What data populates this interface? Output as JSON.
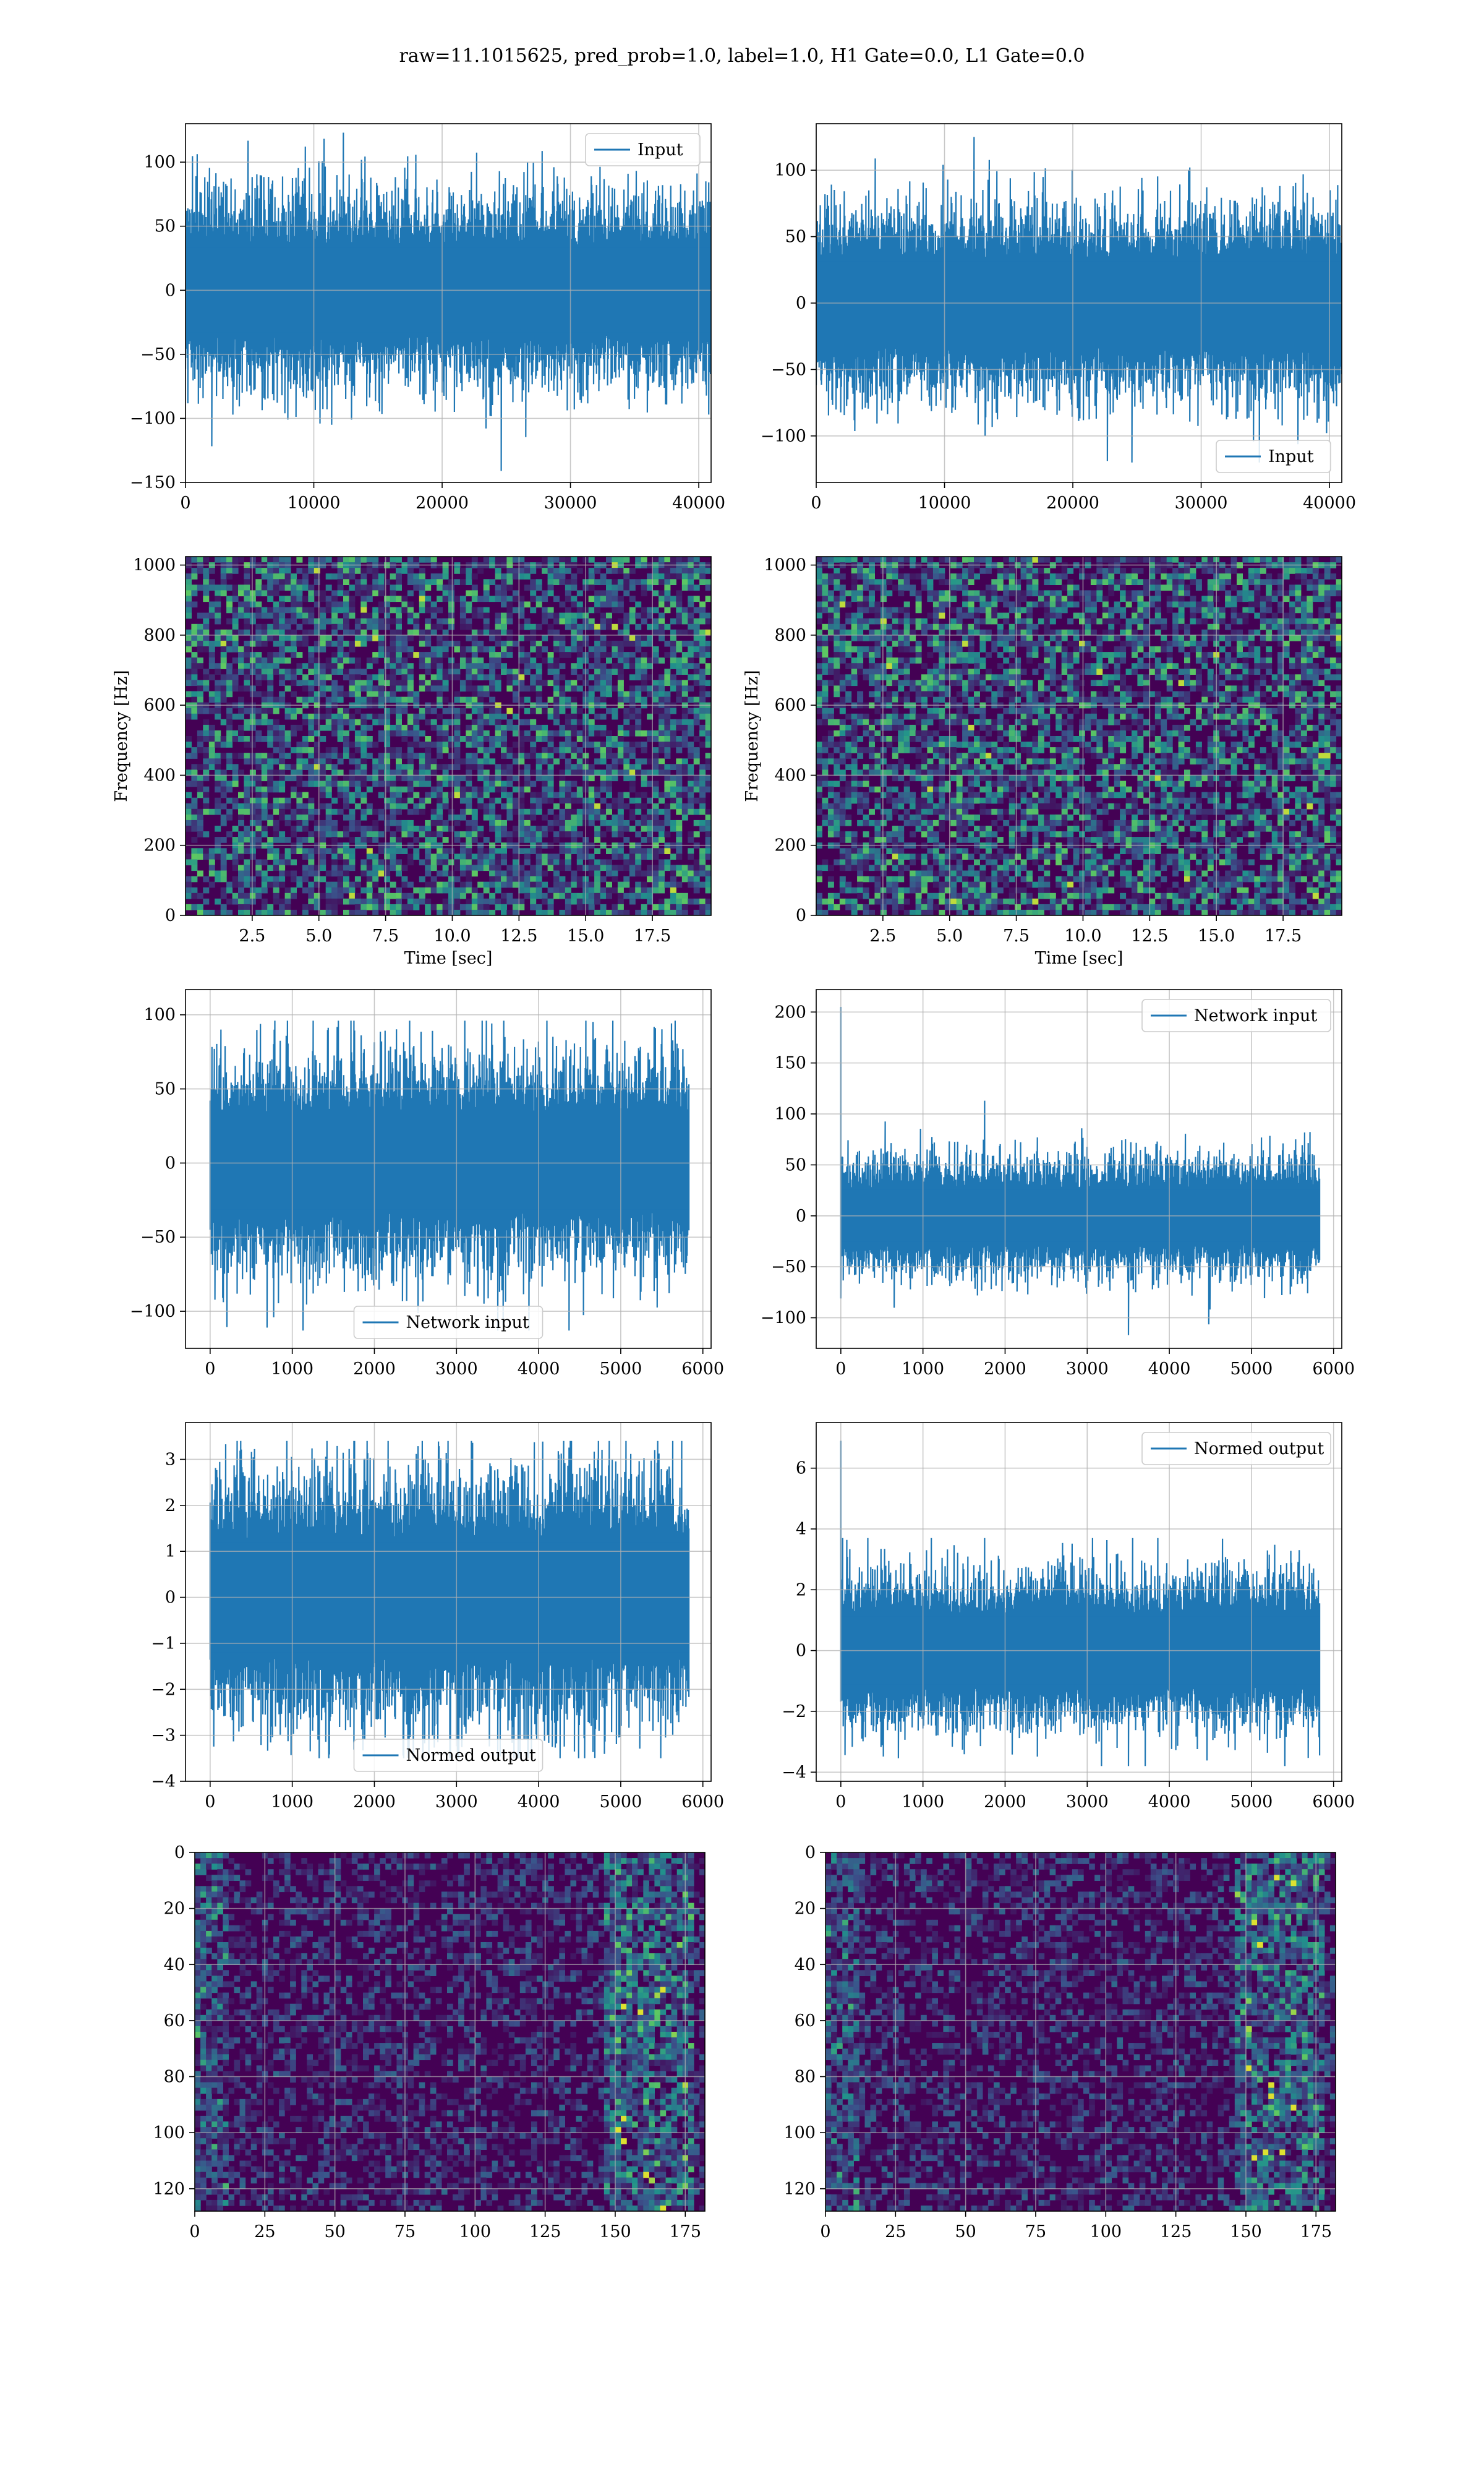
{
  "figure": {
    "suptitle": "raw=11.1015625, pred_prob=1.0, label=1.0, H1 Gate=0.0, L1 Gate=0.0"
  },
  "palette": {
    "line": "#1f77b4",
    "grid": "#b0b0b0",
    "viridis_low": "#440154",
    "viridis_mid": "#21918c",
    "viridis_high": "#fde725"
  },
  "chart_data": [
    {
      "id": "input_h1",
      "type": "line",
      "title": "",
      "xlabel": "",
      "ylabel": "",
      "xlim": [
        0,
        40960
      ],
      "ylim": [
        -150,
        130
      ],
      "xticks": [
        0,
        10000,
        20000,
        30000,
        40000
      ],
      "yticks": [
        -150,
        -100,
        -50,
        0,
        50,
        100
      ],
      "legend": {
        "loc": "upper right",
        "label": "Input"
      },
      "signal": {
        "x_range": [
          0,
          40960
        ],
        "points": 900,
        "sigma": 22,
        "peak_max": 123,
        "peak_min": -141,
        "spike_at_start": 0
      },
      "grid": true
    },
    {
      "id": "input_l1",
      "type": "line",
      "title": "",
      "xlabel": "",
      "ylabel": "",
      "xlim": [
        0,
        40960
      ],
      "ylim": [
        -135,
        135
      ],
      "xticks": [
        0,
        10000,
        20000,
        30000,
        40000
      ],
      "yticks": [
        -100,
        -50,
        0,
        50,
        100
      ],
      "legend": {
        "loc": "lower right",
        "label": "Input"
      },
      "signal": {
        "x_range": [
          0,
          40960
        ],
        "points": 900,
        "sigma": 21,
        "peak_max": 125,
        "peak_min": -120,
        "spike_at_start": 0
      },
      "grid": true
    },
    {
      "id": "spec_h1",
      "type": "heatmap",
      "title": "",
      "xlabel": "Time [sec]",
      "ylabel": "Frequency [Hz]",
      "xlim": [
        0,
        19.7
      ],
      "ylim": [
        0,
        1024
      ],
      "xticks": [
        2.5,
        5.0,
        7.5,
        10.0,
        12.5,
        15.0,
        17.5
      ],
      "xticklabels": [
        "2.5",
        "5.0",
        "7.5",
        "10.0",
        "12.5",
        "15.0",
        "17.5"
      ],
      "yticks": [
        0,
        200,
        400,
        600,
        800,
        1000
      ],
      "colormap": "viridis",
      "grid": true
    },
    {
      "id": "spec_l1",
      "type": "heatmap",
      "title": "",
      "xlabel": "Time [sec]",
      "ylabel": "Frequency [Hz]",
      "xlim": [
        0,
        19.7
      ],
      "ylim": [
        0,
        1024
      ],
      "xticks": [
        2.5,
        5.0,
        7.5,
        10.0,
        12.5,
        15.0,
        17.5
      ],
      "xticklabels": [
        "2.5",
        "5.0",
        "7.5",
        "10.0",
        "12.5",
        "15.0",
        "17.5"
      ],
      "yticks": [
        0,
        200,
        400,
        600,
        800,
        1000
      ],
      "colormap": "viridis",
      "grid": true
    },
    {
      "id": "net_h1",
      "type": "line",
      "title": "",
      "xlabel": "",
      "ylabel": "",
      "xlim": [
        -300,
        6100
      ],
      "ylim": [
        -125,
        117
      ],
      "xticks": [
        0,
        1000,
        2000,
        3000,
        4000,
        5000,
        6000
      ],
      "yticks": [
        -100,
        -50,
        0,
        50,
        100
      ],
      "legend": {
        "loc": "lower center",
        "label": "Network input"
      },
      "signal": {
        "x_range": [
          0,
          5830
        ],
        "points": 800,
        "sigma": 21,
        "peak_max": 96,
        "peak_min": -113,
        "spike_at_start": 0
      },
      "grid": true
    },
    {
      "id": "net_l1",
      "type": "line",
      "title": "",
      "xlabel": "",
      "ylabel": "",
      "xlim": [
        -300,
        6100
      ],
      "ylim": [
        -130,
        222
      ],
      "xticks": [
        0,
        1000,
        2000,
        3000,
        4000,
        5000,
        6000
      ],
      "yticks": [
        -100,
        -50,
        0,
        50,
        100,
        150,
        200
      ],
      "legend": {
        "loc": "upper right",
        "label": "Network input"
      },
      "signal": {
        "x_range": [
          0,
          5830
        ],
        "points": 800,
        "sigma": 17,
        "peak_max": 113,
        "peak_min": -117,
        "spike_at_start": 205
      },
      "grid": true
    },
    {
      "id": "norm_h1",
      "type": "line",
      "title": "",
      "xlabel": "",
      "ylabel": "",
      "xlim": [
        -300,
        6100
      ],
      "ylim": [
        -4,
        3.8
      ],
      "xticks": [
        0,
        1000,
        2000,
        3000,
        4000,
        5000,
        6000
      ],
      "yticks": [
        -4,
        -3,
        -2,
        -1,
        0,
        1,
        2,
        3
      ],
      "legend": {
        "loc": "lower center",
        "label": "Normed output"
      },
      "signal": {
        "x_range": [
          0,
          5830
        ],
        "points": 800,
        "sigma": 0.8,
        "peak_max": 3.4,
        "peak_min": -3.5,
        "spike_at_start": 0
      },
      "grid": true
    },
    {
      "id": "norm_l1",
      "type": "line",
      "title": "",
      "xlabel": "",
      "ylabel": "",
      "xlim": [
        -300,
        6100
      ],
      "ylim": [
        -4.3,
        7.5
      ],
      "xticks": [
        0,
        1000,
        2000,
        3000,
        4000,
        5000,
        6000
      ],
      "yticks": [
        -4,
        -2,
        0,
        2,
        4,
        6
      ],
      "legend": {
        "loc": "upper right",
        "label": "Normed output"
      },
      "signal": {
        "x_range": [
          0,
          5830
        ],
        "points": 800,
        "sigma": 0.75,
        "peak_max": 3.7,
        "peak_min": -3.8,
        "spike_at_start": 6.9
      },
      "grid": true
    },
    {
      "id": "feat_h1",
      "type": "heatmap",
      "title": "",
      "xlabel": "",
      "ylabel": "",
      "xlim": [
        0,
        182
      ],
      "ylim": [
        128,
        0
      ],
      "xticks": [
        0,
        25,
        50,
        75,
        100,
        125,
        150,
        175
      ],
      "yticks": [
        0,
        20,
        40,
        60,
        80,
        100,
        120
      ],
      "colormap": "viridis",
      "grid": true
    },
    {
      "id": "feat_l1",
      "type": "heatmap",
      "title": "",
      "xlabel": "",
      "ylabel": "",
      "xlim": [
        0,
        182
      ],
      "ylim": [
        128,
        0
      ],
      "xticks": [
        0,
        25,
        50,
        75,
        100,
        125,
        150,
        175
      ],
      "yticks": [
        0,
        20,
        40,
        60,
        80,
        100,
        120
      ],
      "colormap": "viridis",
      "grid": true
    }
  ]
}
